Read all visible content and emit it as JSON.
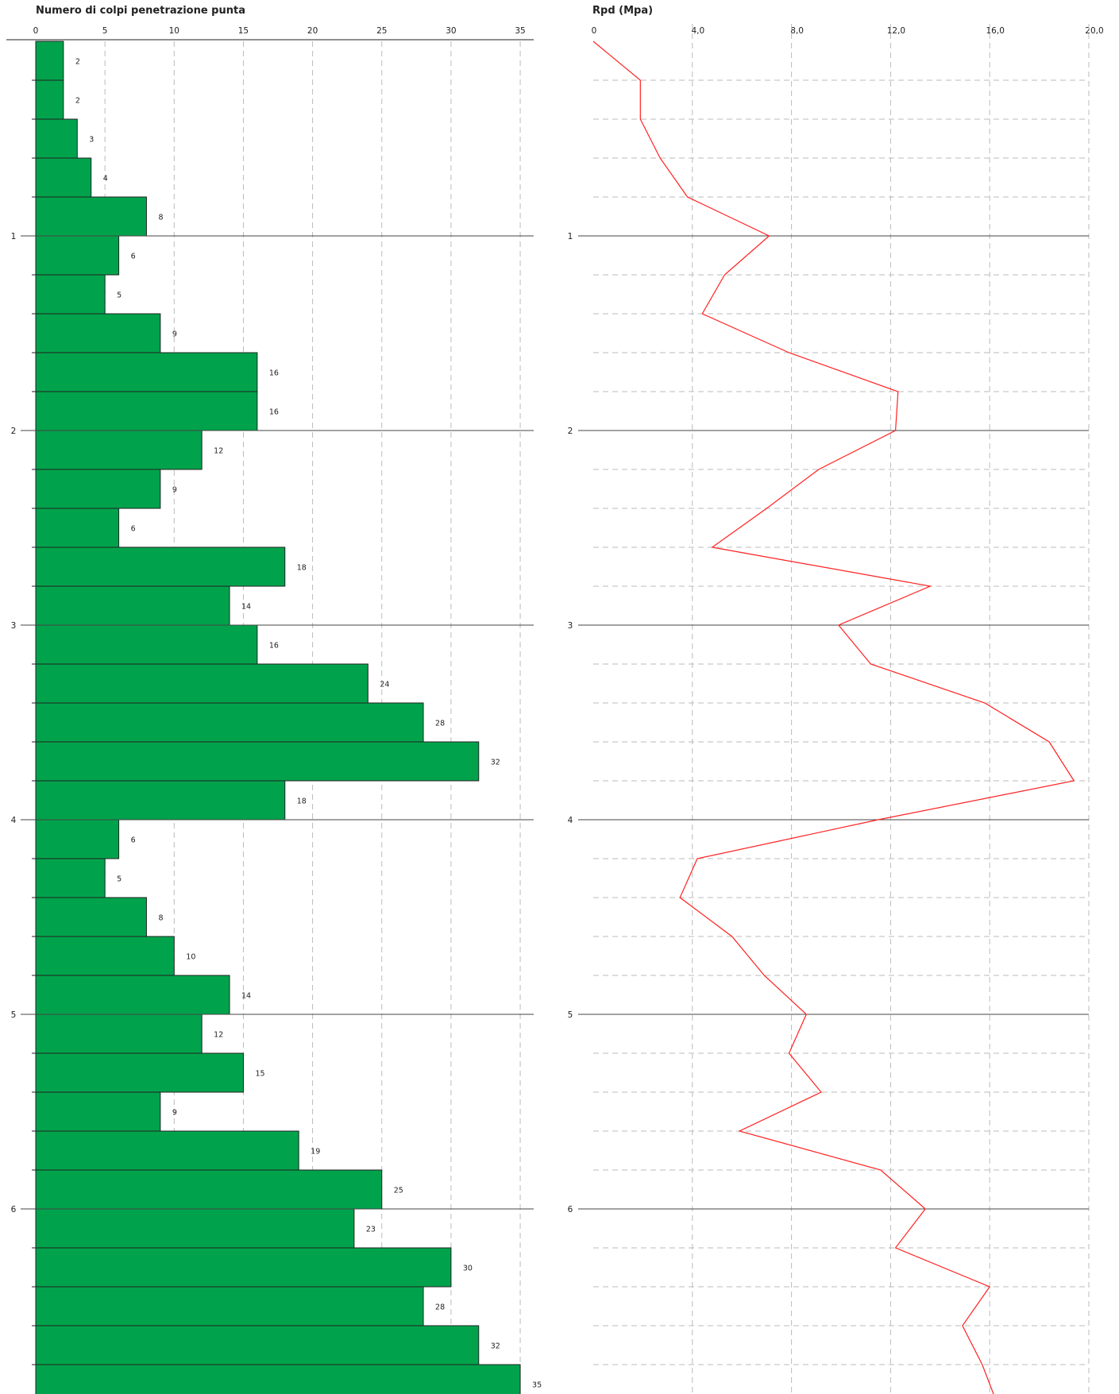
{
  "chart_data": [
    {
      "type": "bar",
      "orientation": "horizontal",
      "title": "Numero di colpi penetrazione punta",
      "xlim": [
        0,
        35
      ],
      "x_ticks": [
        "0",
        "5",
        "10",
        "15",
        "20",
        "25",
        "30",
        "35"
      ],
      "depth_ticks": [
        "1",
        "2",
        "3",
        "4",
        "5",
        "6"
      ],
      "depth_step": 0.2,
      "bar_color": "#00a34b",
      "values": [
        2,
        2,
        3,
        4,
        8,
        6,
        5,
        9,
        16,
        16,
        12,
        9,
        6,
        18,
        14,
        16,
        24,
        28,
        32,
        18,
        6,
        5,
        8,
        10,
        14,
        12,
        15,
        9,
        19,
        25,
        23,
        30,
        28,
        32,
        35
      ]
    },
    {
      "type": "line",
      "title": "Rpd (Mpa)",
      "xlim": [
        0,
        20
      ],
      "x_ticks": [
        "0",
        "4,0",
        "8,0",
        "12,0",
        "16,0",
        "20,0"
      ],
      "depth_ticks": [
        "1",
        "2",
        "3",
        "4",
        "5",
        "6"
      ],
      "line_color": "#ff2020",
      "points": [
        {
          "depth": 0.0,
          "rpd": 0.0
        },
        {
          "depth": 0.2,
          "rpd": 1.9
        },
        {
          "depth": 0.4,
          "rpd": 1.9
        },
        {
          "depth": 0.6,
          "rpd": 2.7
        },
        {
          "depth": 0.8,
          "rpd": 3.8
        },
        {
          "depth": 1.0,
          "rpd": 7.1
        },
        {
          "depth": 1.2,
          "rpd": 5.3
        },
        {
          "depth": 1.4,
          "rpd": 4.4
        },
        {
          "depth": 1.6,
          "rpd": 7.9
        },
        {
          "depth": 1.8,
          "rpd": 12.3
        },
        {
          "depth": 2.0,
          "rpd": 12.2
        },
        {
          "depth": 2.2,
          "rpd": 9.1
        },
        {
          "depth": 2.4,
          "rpd": 7.0
        },
        {
          "depth": 2.6,
          "rpd": 4.8
        },
        {
          "depth": 2.8,
          "rpd": 13.6
        },
        {
          "depth": 3.0,
          "rpd": 9.9
        },
        {
          "depth": 3.2,
          "rpd": 11.2
        },
        {
          "depth": 3.4,
          "rpd": 15.8
        },
        {
          "depth": 3.6,
          "rpd": 18.4
        },
        {
          "depth": 3.8,
          "rpd": 19.4
        },
        {
          "depth": 4.0,
          "rpd": 11.5
        },
        {
          "depth": 4.2,
          "rpd": 4.2
        },
        {
          "depth": 4.4,
          "rpd": 3.5
        },
        {
          "depth": 4.6,
          "rpd": 5.6
        },
        {
          "depth": 4.8,
          "rpd": 6.9
        },
        {
          "depth": 5.0,
          "rpd": 8.6
        },
        {
          "depth": 5.2,
          "rpd": 7.9
        },
        {
          "depth": 5.4,
          "rpd": 9.2
        },
        {
          "depth": 5.6,
          "rpd": 5.9
        },
        {
          "depth": 5.8,
          "rpd": 11.6
        },
        {
          "depth": 6.0,
          "rpd": 13.4
        },
        {
          "depth": 6.2,
          "rpd": 12.2
        },
        {
          "depth": 6.4,
          "rpd": 16.0
        },
        {
          "depth": 6.6,
          "rpd": 14.9
        },
        {
          "depth": 6.8,
          "rpd": 15.7
        },
        {
          "depth": 7.0,
          "rpd": 16.3
        }
      ]
    }
  ]
}
